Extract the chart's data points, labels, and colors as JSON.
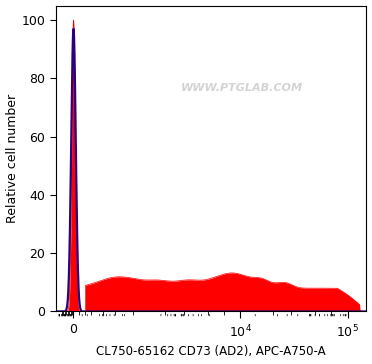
{
  "xlabel": "CL750-65162 CD73 (AD2), APC-A750-A",
  "ylabel": "Relative cell number",
  "watermark": "WWW.PTGLAB.COM",
  "ylim": [
    0,
    105
  ],
  "yticks": [
    0,
    20,
    40,
    60,
    80,
    100
  ],
  "xticks": [
    0,
    10000,
    100000
  ],
  "xticklabels": [
    "0",
    "$10^4$",
    "$10^5$"
  ],
  "xlim_min": -300,
  "xlim_max": 150000,
  "linthresh": 1000,
  "linscale": 0.5,
  "fill_color": "#FF0000",
  "line_color": "#2a0080",
  "bg_color": "#ffffff",
  "fill_alpha": 1.0,
  "line_width": 1.6
}
